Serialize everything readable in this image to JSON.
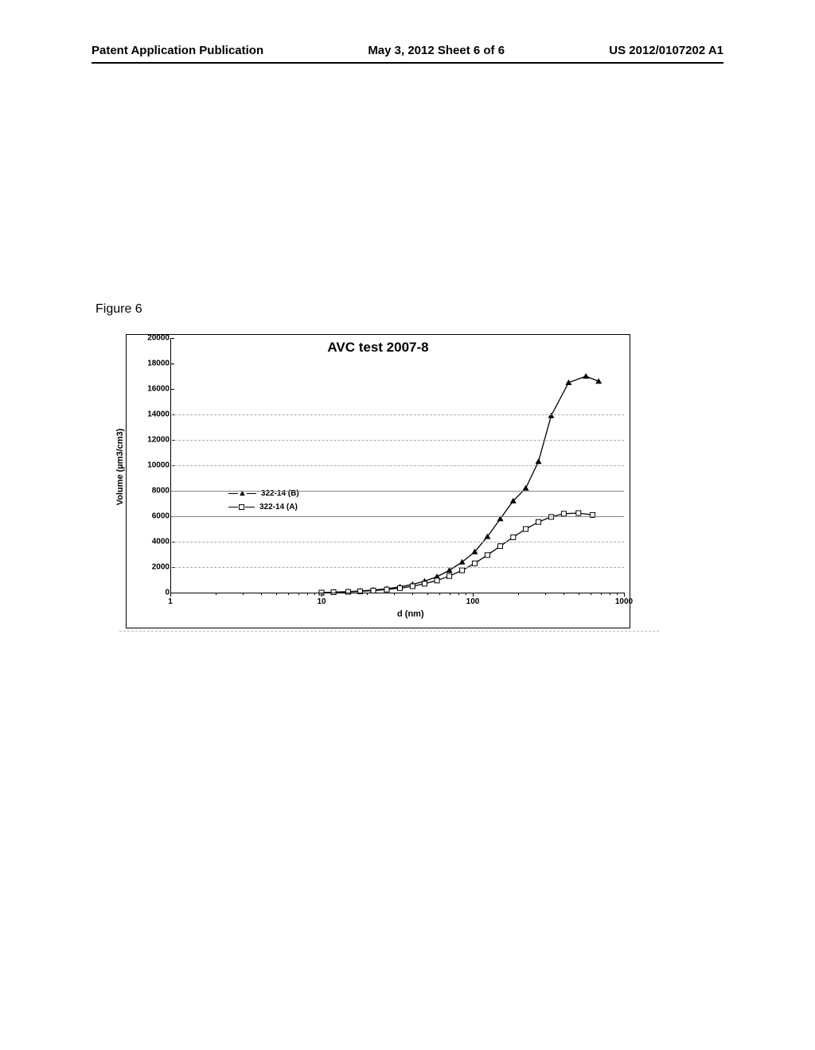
{
  "header": {
    "left": "Patent Application Publication",
    "center": "May 3, 2012  Sheet 6 of 6",
    "right": "US 2012/0107202 A1"
  },
  "figure_label": "Figure 6",
  "chart": {
    "type": "line",
    "title": "AVC test 2007-8",
    "x_label": "d (nm)",
    "y_label": "Volume (µm3/cm3)",
    "x_scale": "log",
    "x_ticks": [
      1,
      10,
      100,
      1000
    ],
    "y_ticks": [
      0,
      2000,
      4000,
      6000,
      8000,
      10000,
      12000,
      14000,
      16000,
      18000,
      20000
    ],
    "ylim": [
      0,
      20000
    ],
    "xlim": [
      1,
      1000
    ],
    "grid_color": "#aaaaaa",
    "solid_gridlines_at": [
      6000,
      8000
    ],
    "dashed_gridlines_at": [
      2000,
      4000,
      10000,
      12000,
      14000
    ],
    "background_color": "#ffffff",
    "series": [
      {
        "name": "322-14 (B)",
        "marker": "triangle",
        "color": "#000000",
        "line_style": "solid",
        "data": [
          [
            10,
            0
          ],
          [
            12,
            40
          ],
          [
            15,
            80
          ],
          [
            18,
            130
          ],
          [
            22,
            200
          ],
          [
            27,
            300
          ],
          [
            33,
            450
          ],
          [
            40,
            650
          ],
          [
            48,
            900
          ],
          [
            58,
            1250
          ],
          [
            70,
            1750
          ],
          [
            85,
            2400
          ],
          [
            103,
            3200
          ],
          [
            125,
            4400
          ],
          [
            152,
            5800
          ],
          [
            185,
            7200
          ],
          [
            224,
            8200
          ],
          [
            272,
            10300
          ],
          [
            330,
            13900
          ],
          [
            430,
            16500
          ],
          [
            560,
            17000
          ],
          [
            680,
            16600
          ]
        ]
      },
      {
        "name": "322-14 (A)",
        "marker": "square-open",
        "color": "#000000",
        "line_style": "solid",
        "data": [
          [
            10,
            0
          ],
          [
            12,
            30
          ],
          [
            15,
            60
          ],
          [
            18,
            100
          ],
          [
            22,
            160
          ],
          [
            27,
            240
          ],
          [
            33,
            350
          ],
          [
            40,
            500
          ],
          [
            48,
            700
          ],
          [
            58,
            950
          ],
          [
            70,
            1300
          ],
          [
            85,
            1750
          ],
          [
            103,
            2300
          ],
          [
            125,
            2950
          ],
          [
            152,
            3650
          ],
          [
            185,
            4350
          ],
          [
            224,
            5000
          ],
          [
            272,
            5550
          ],
          [
            330,
            5950
          ],
          [
            400,
            6200
          ],
          [
            500,
            6250
          ],
          [
            620,
            6100
          ]
        ]
      }
    ]
  }
}
